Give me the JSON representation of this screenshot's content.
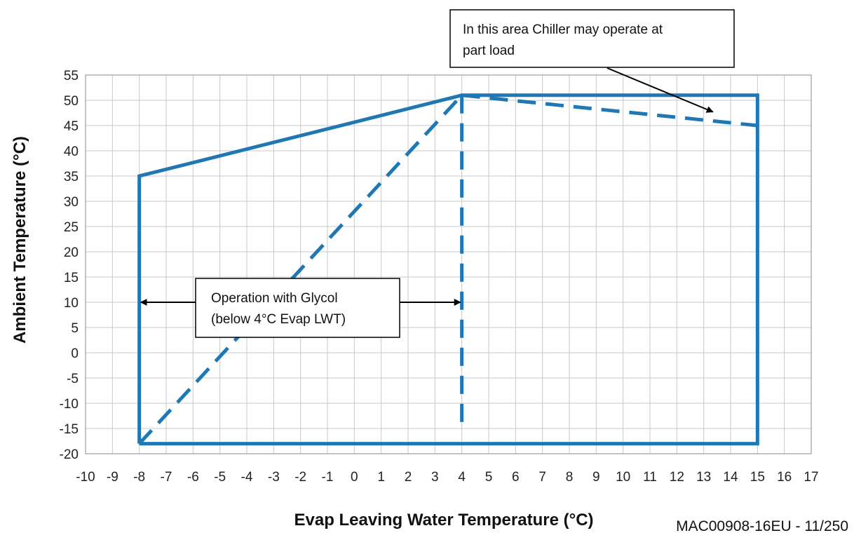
{
  "chart_data": {
    "type": "line",
    "xlabel": "Evap Leaving Water Temperature (°C)",
    "ylabel": "Ambient Temperature (°C)",
    "xlim": [
      -10,
      17
    ],
    "ylim": [
      -20,
      55
    ],
    "x_ticks": [
      -10,
      -9,
      -8,
      -7,
      -6,
      -5,
      -4,
      -3,
      -2,
      -1,
      0,
      1,
      2,
      3,
      4,
      5,
      6,
      7,
      8,
      9,
      10,
      11,
      12,
      13,
      14,
      15,
      16,
      17
    ],
    "y_ticks": [
      -20,
      -15,
      -10,
      -5,
      0,
      5,
      10,
      15,
      20,
      25,
      30,
      35,
      40,
      45,
      50,
      55
    ],
    "grid": true,
    "color": "#1f77b4",
    "series": [
      {
        "style": "solid",
        "points": [
          [
            -8,
            -18
          ],
          [
            -8,
            35
          ],
          [
            4,
            51
          ],
          [
            15,
            51
          ],
          [
            15,
            -18
          ],
          [
            -8,
            -18
          ]
        ]
      },
      {
        "style": "dashed",
        "points": [
          [
            -8,
            -18
          ],
          [
            4,
            51
          ]
        ]
      },
      {
        "style": "dashed",
        "points": [
          [
            4,
            51
          ],
          [
            4,
            -15
          ]
        ]
      },
      {
        "style": "dashed",
        "points": [
          [
            4,
            51
          ],
          [
            15,
            45
          ]
        ]
      }
    ],
    "annotations": [
      {
        "id": "glycol",
        "lines": [
          "Operation with Glycol",
          "(below 4°C Evap LWT)"
        ],
        "arrow_from_x": -8,
        "arrow_to_x": 4,
        "arrow_y": 10
      },
      {
        "id": "partload",
        "lines": [
          "In this area Chiller may operate at",
          "part load"
        ],
        "arrow_target": [
          13.5,
          47
        ]
      }
    ]
  },
  "footer": {
    "code": "MAC00908-16EU - 11/250"
  }
}
